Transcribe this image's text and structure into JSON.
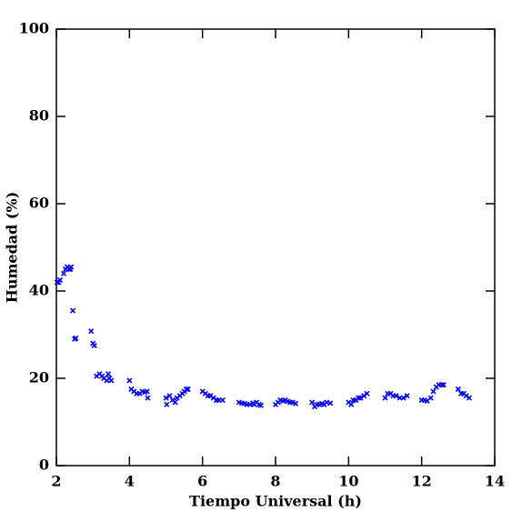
{
  "chart_data": {
    "type": "scatter",
    "xlabel": "Tiempo Universal (h)",
    "ylabel": "Humedad (%)",
    "xlim": [
      2,
      14
    ],
    "xticks": [
      2,
      4,
      6,
      8,
      10,
      12,
      14
    ],
    "ylim": [
      0,
      100
    ],
    "yticks": [
      0,
      20,
      40,
      60,
      80,
      100
    ],
    "series": [
      {
        "color": "#0000ff",
        "x": [
          2.02,
          2.06,
          2.1,
          2.2,
          2.25,
          2.3,
          2.35,
          2.4,
          2.38,
          2.45,
          2.5,
          2.53,
          2.95,
          3.0,
          3.04,
          3.1,
          3.18,
          3.25,
          3.3,
          3.38,
          3.42,
          3.45,
          3.5,
          4.0,
          4.05,
          4.12,
          4.2,
          4.28,
          4.35,
          4.42,
          4.48,
          4.5,
          5.0,
          5.02,
          5.1,
          5.18,
          5.25,
          5.3,
          5.38,
          5.45,
          5.5,
          5.56,
          5.6,
          6.0,
          6.08,
          6.15,
          6.22,
          6.3,
          6.38,
          6.45,
          6.55,
          7.0,
          7.08,
          7.15,
          7.22,
          7.3,
          7.38,
          7.42,
          7.48,
          7.55,
          7.6,
          8.0,
          8.07,
          8.13,
          8.2,
          8.27,
          8.33,
          8.4,
          8.47,
          8.55,
          9.0,
          9.07,
          9.13,
          9.2,
          9.27,
          9.33,
          9.4,
          9.5,
          10.0,
          10.07,
          10.13,
          10.2,
          10.27,
          10.33,
          10.42,
          10.5,
          11.0,
          11.07,
          11.15,
          11.22,
          11.3,
          11.4,
          11.5,
          11.6,
          12.0,
          12.08,
          12.15,
          12.25,
          12.32,
          12.4,
          12.47,
          12.55,
          12.6,
          13.0,
          13.08,
          13.15,
          13.22,
          13.3
        ],
        "values": [
          42,
          42,
          42.5,
          44,
          45,
          45.5,
          45,
          45.5,
          45,
          35.5,
          29,
          29.2,
          30.8,
          28,
          27.5,
          20.5,
          21,
          20.5,
          20,
          19.5,
          21,
          20,
          19.5,
          19.5,
          17.5,
          17,
          16.5,
          16.5,
          17,
          16.8,
          17,
          15.5,
          15.5,
          14,
          16,
          15,
          14.5,
          15.5,
          16,
          16.5,
          17,
          17.5,
          17.5,
          17,
          16.5,
          16,
          16,
          15.5,
          15,
          15,
          15,
          14.5,
          14.3,
          14.2,
          14,
          14,
          14.3,
          14,
          14.5,
          14,
          13.8,
          14,
          14.5,
          15,
          14.8,
          15,
          14.7,
          14.5,
          14.5,
          14.2,
          14.5,
          13.5,
          14,
          14,
          14.2,
          14,
          14.5,
          14.3,
          14.5,
          14,
          15,
          15,
          15.5,
          15.5,
          16,
          16.5,
          15.5,
          16.5,
          16.5,
          16,
          16,
          15.5,
          15.5,
          16,
          15,
          15,
          14.8,
          15.5,
          17,
          18,
          18.5,
          18.5,
          18.5,
          17.5,
          16.5,
          16.5,
          16,
          15.5
        ]
      }
    ]
  }
}
